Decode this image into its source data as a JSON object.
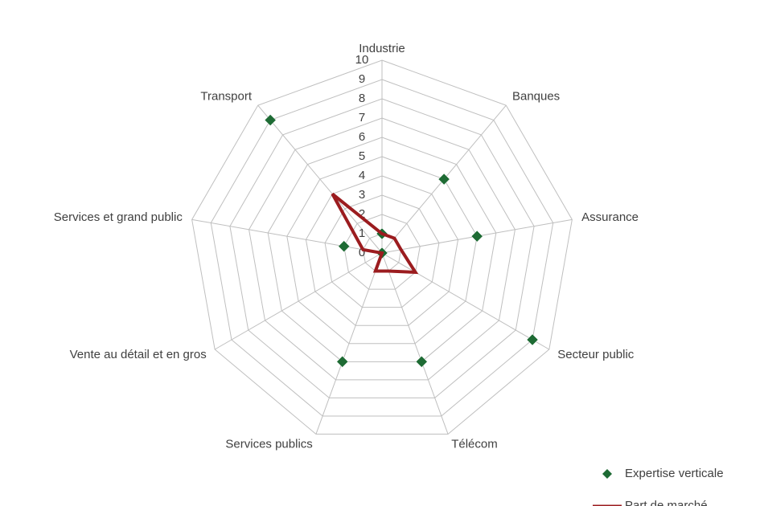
{
  "chart_data": {
    "type": "radar",
    "categories": [
      "Industrie",
      "Banques",
      "Assurance",
      "Secteur public",
      "Télécom",
      "Services publics",
      "Vente au détail et en gros",
      "Services et grand public",
      "Transport"
    ],
    "rlim": [
      0,
      10
    ],
    "rticks": [
      0,
      1,
      2,
      3,
      4,
      5,
      6,
      7,
      8,
      9,
      10
    ],
    "grid": true,
    "legend": "bottom-right",
    "series": [
      {
        "name": "Expertise verticale",
        "color": "#1e6b34",
        "marker": "diamond",
        "values": [
          1,
          5,
          5,
          9,
          6,
          6,
          0,
          2,
          9
        ]
      },
      {
        "name": "Part de marché",
        "color": "#9b1c1f",
        "marker": "line",
        "values": [
          1,
          1,
          1,
          2,
          1,
          1,
          0,
          1,
          4
        ]
      }
    ]
  }
}
